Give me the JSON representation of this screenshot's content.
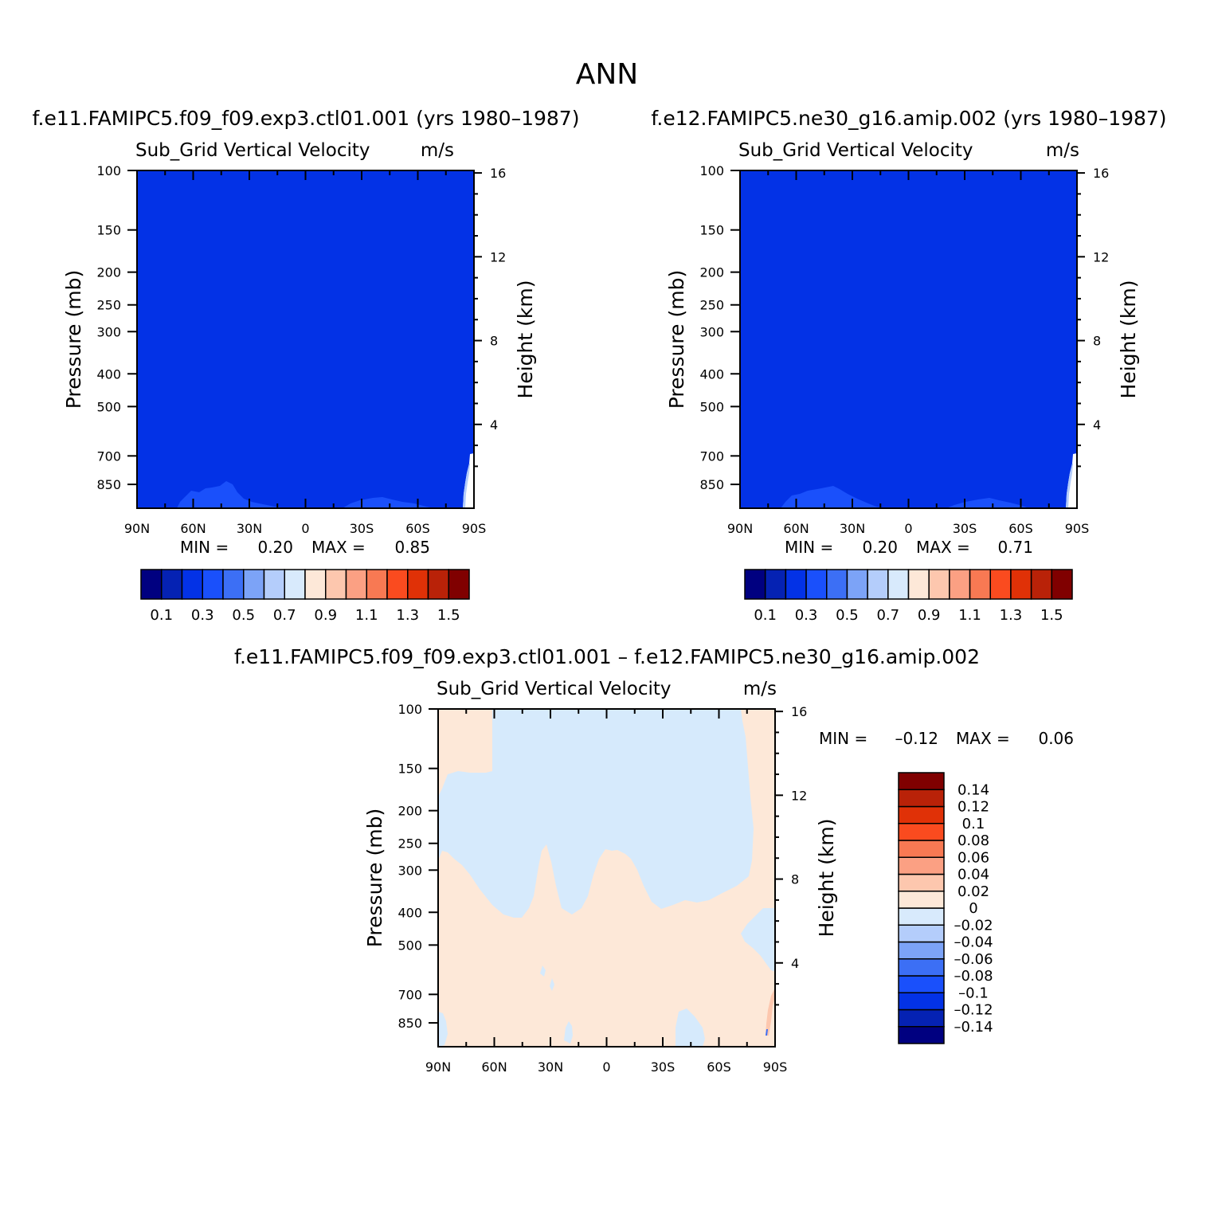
{
  "main_title": "ANN",
  "colors": {
    "frame": "#000000",
    "diff_positive": "#fde8d8",
    "diff_negative": "#d6eafc",
    "field_base": "#0332e6",
    "field_light": "#1a50fb"
  },
  "chart_data": [
    {
      "type": "heatmap",
      "id": "panel1",
      "title": "f.e11.FAMIPC5.f09_f09.exp3.ctl01.001 (yrs 1980–1987)",
      "variable": "Sub_Grid Vertical Velocity",
      "units": "m/s",
      "ylabel": "Pressure (mb)",
      "y2label": "Height (km)",
      "x_ticks": [
        "90N",
        "60N",
        "30N",
        "0",
        "30S",
        "60S",
        "90S"
      ],
      "x_values": [
        90,
        60,
        30,
        0,
        -30,
        -60,
        -90
      ],
      "y_ticks": [
        100,
        150,
        200,
        250,
        300,
        400,
        500,
        700,
        850
      ],
      "y_range": [
        100,
        1000
      ],
      "y2_ticks": [
        16,
        12,
        8,
        4
      ],
      "stats": {
        "min_label": "MIN =",
        "min": "0.20",
        "max_label": "MAX =",
        "max": "0.85"
      },
      "dominant_level": "0.2–0.3",
      "colorbar": {
        "orientation": "horizontal",
        "colors": [
          "#000080",
          "#0522b3",
          "#0332e6",
          "#1a50fb",
          "#3c6ff5",
          "#7ca3f7",
          "#b4cdfb",
          "#d8eafc",
          "#fde8d8",
          "#fdc7ae",
          "#fba083",
          "#f87953",
          "#fa4b1f",
          "#e03107",
          "#b92208",
          "#800000"
        ],
        "labels": [
          "0.1",
          "0.3",
          "0.5",
          "0.7",
          "0.9",
          "1.1",
          "1.3",
          "1.5"
        ]
      }
    },
    {
      "type": "heatmap",
      "id": "panel2",
      "title": "f.e12.FAMIPC5.ne30_g16.amip.002 (yrs 1980–1987)",
      "variable": "Sub_Grid Vertical Velocity",
      "units": "m/s",
      "ylabel": "Pressure (mb)",
      "y2label": "Height (km)",
      "x_ticks": [
        "90N",
        "60N",
        "30N",
        "0",
        "30S",
        "60S",
        "90S"
      ],
      "x_values": [
        90,
        60,
        30,
        0,
        -30,
        -60,
        -90
      ],
      "y_ticks": [
        100,
        150,
        200,
        250,
        300,
        400,
        500,
        700,
        850
      ],
      "y_range": [
        100,
        1000
      ],
      "y2_ticks": [
        16,
        12,
        8,
        4
      ],
      "stats": {
        "min_label": "MIN =",
        "min": "0.20",
        "max_label": "MAX =",
        "max": "0.71"
      },
      "dominant_level": "0.2–0.3",
      "colorbar": {
        "orientation": "horizontal",
        "colors": [
          "#000080",
          "#0522b3",
          "#0332e6",
          "#1a50fb",
          "#3c6ff5",
          "#7ca3f7",
          "#b4cdfb",
          "#d8eafc",
          "#fde8d8",
          "#fdc7ae",
          "#fba083",
          "#f87953",
          "#fa4b1f",
          "#e03107",
          "#b92208",
          "#800000"
        ],
        "labels": [
          "0.1",
          "0.3",
          "0.5",
          "0.7",
          "0.9",
          "1.1",
          "1.3",
          "1.5"
        ]
      }
    },
    {
      "type": "heatmap",
      "id": "panel3",
      "title": "f.e11.FAMIPC5.f09_f09.exp3.ctl01.001 – f.e12.FAMIPC5.ne30_g16.amip.002",
      "variable": "Sub_Grid Vertical Velocity",
      "units": "m/s",
      "ylabel": "Pressure (mb)",
      "y2label": "Height (km)",
      "x_ticks": [
        "90N",
        "60N",
        "30N",
        "0",
        "30S",
        "60S",
        "90S"
      ],
      "x_values": [
        90,
        60,
        30,
        0,
        -30,
        -60,
        -90
      ],
      "y_ticks": [
        100,
        150,
        200,
        250,
        300,
        400,
        500,
        700,
        850
      ],
      "y_range": [
        100,
        1000
      ],
      "y2_ticks": [
        16,
        12,
        8,
        4
      ],
      "stats": {
        "min_label": "MIN =",
        "min": "–0.12",
        "max_label": "MAX =",
        "max": "0.06"
      },
      "regions": "upper troposphere mostly -0.02–0 ; lower troposphere mostly 0–0.02",
      "colorbar": {
        "orientation": "vertical",
        "colors": [
          "#000080",
          "#0522b3",
          "#0332e6",
          "#1a50fb",
          "#3c6ff5",
          "#7ca3f7",
          "#b4cdfb",
          "#d8eafc",
          "#fde8d8",
          "#fdc7ae",
          "#fba083",
          "#f87953",
          "#fa4b1f",
          "#e03107",
          "#b92208",
          "#800000"
        ],
        "labels": [
          "0.14",
          "0.12",
          "0.1",
          "0.08",
          "0.06",
          "0.04",
          "0.02",
          "0",
          "–0.02",
          "–0.04",
          "–0.06",
          "–0.08",
          "–0.1",
          "–0.12",
          "–0.14"
        ]
      }
    }
  ]
}
